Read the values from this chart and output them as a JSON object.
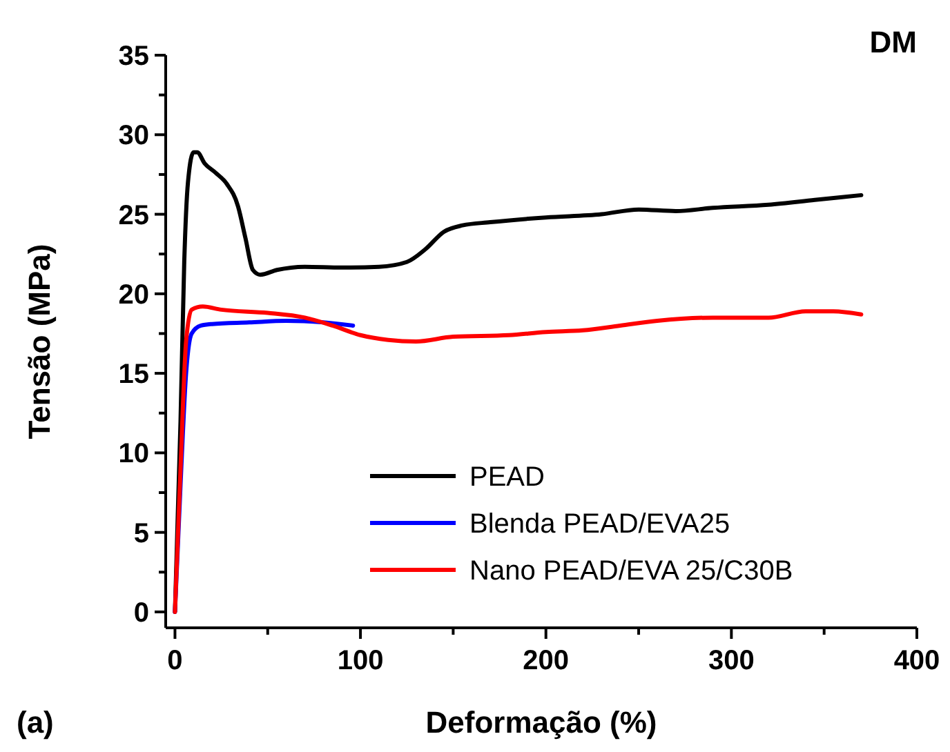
{
  "chart_data": {
    "type": "line",
    "xlabel": "Deformação (%)",
    "ylabel": "Tensão (MPa)",
    "annotations": [
      "DM",
      "(a)"
    ],
    "xlim": [
      -5,
      400
    ],
    "ylim": [
      -1,
      35
    ],
    "xticks": [
      0,
      {
        "value": 50,
        "label": null
      },
      100,
      {
        "value": 150,
        "label": null
      },
      200,
      {
        "value": 250,
        "label": null
      },
      300,
      {
        "value": 350,
        "label": null
      },
      400
    ],
    "yticks": [
      0,
      {
        "value": 2.5,
        "label": null
      },
      5,
      {
        "value": 7.5,
        "label": null
      },
      10,
      {
        "value": 12.5,
        "label": null
      },
      15,
      {
        "value": 17.5,
        "label": null
      },
      20,
      {
        "value": 22.5,
        "label": null
      },
      25,
      {
        "value": 27.5,
        "label": null
      },
      30,
      {
        "value": 32.5,
        "label": null
      },
      35
    ],
    "legend": "bottom right",
    "line_style": "solid",
    "marker": "none",
    "series": [
      {
        "name": "PEAD",
        "color": "#000000",
        "x": [
          0,
          3,
          5,
          7,
          10,
          12,
          16,
          22,
          28,
          34,
          38,
          42,
          46,
          55,
          70,
          90,
          110,
          125,
          135,
          145,
          155,
          170,
          200,
          230,
          250,
          270,
          290,
          320,
          345,
          370
        ],
        "values": [
          0,
          12,
          22,
          27,
          28.9,
          28.9,
          28.2,
          27.6,
          26.9,
          25.5,
          23.5,
          21.5,
          21.2,
          21.5,
          21.7,
          21.65,
          21.7,
          22,
          22.8,
          23.9,
          24.3,
          24.5,
          24.8,
          25,
          25.3,
          25.2,
          25.4,
          25.6,
          25.9,
          26.2
        ]
      },
      {
        "name": "Blenda PEAD/EVA25",
        "color": "#0000ff",
        "x": [
          0,
          3,
          6,
          9,
          14,
          20,
          40,
          60,
          80,
          96
        ],
        "values": [
          0,
          8,
          15,
          17.5,
          18,
          18.1,
          18.2,
          18.3,
          18.2,
          18
        ]
      },
      {
        "name": "Nano PEAD/EVA 25/C30B",
        "color": "#ff0000",
        "x": [
          0,
          3,
          6,
          9,
          15,
          25,
          50,
          70,
          85,
          100,
          115,
          130,
          150,
          180,
          200,
          220,
          240,
          260,
          290,
          320,
          340,
          355,
          370
        ],
        "values": [
          0,
          9,
          17,
          19,
          19.2,
          19,
          18.8,
          18.5,
          18,
          17.4,
          17.1,
          17,
          17.3,
          17.4,
          17.6,
          17.7,
          18,
          18.3,
          18.5,
          18.5,
          18.9,
          18.9,
          18.7
        ]
      }
    ]
  }
}
